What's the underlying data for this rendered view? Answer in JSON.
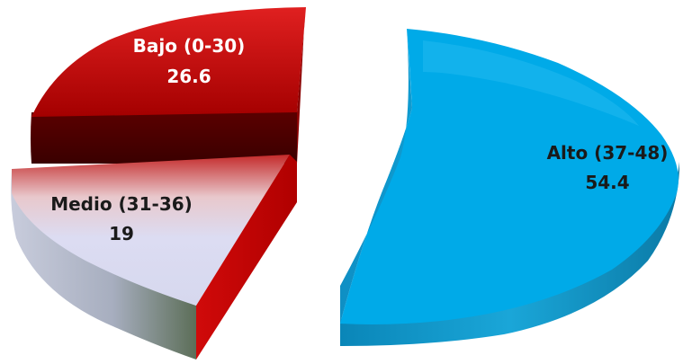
{
  "chart_data": {
    "type": "pie",
    "style": "3d-exploded",
    "slices": [
      {
        "label": "Alto (37-48)",
        "value": 54.4,
        "value_label": "54.4",
        "color": "#00a8e8"
      },
      {
        "label": "Bajo (0-30)",
        "value": 26.6,
        "value_label": "26.6",
        "color": "#c00000"
      },
      {
        "label": "Medio (31-36)",
        "value": 19,
        "value_label": "19",
        "color": "#dcdcf2"
      }
    ]
  }
}
